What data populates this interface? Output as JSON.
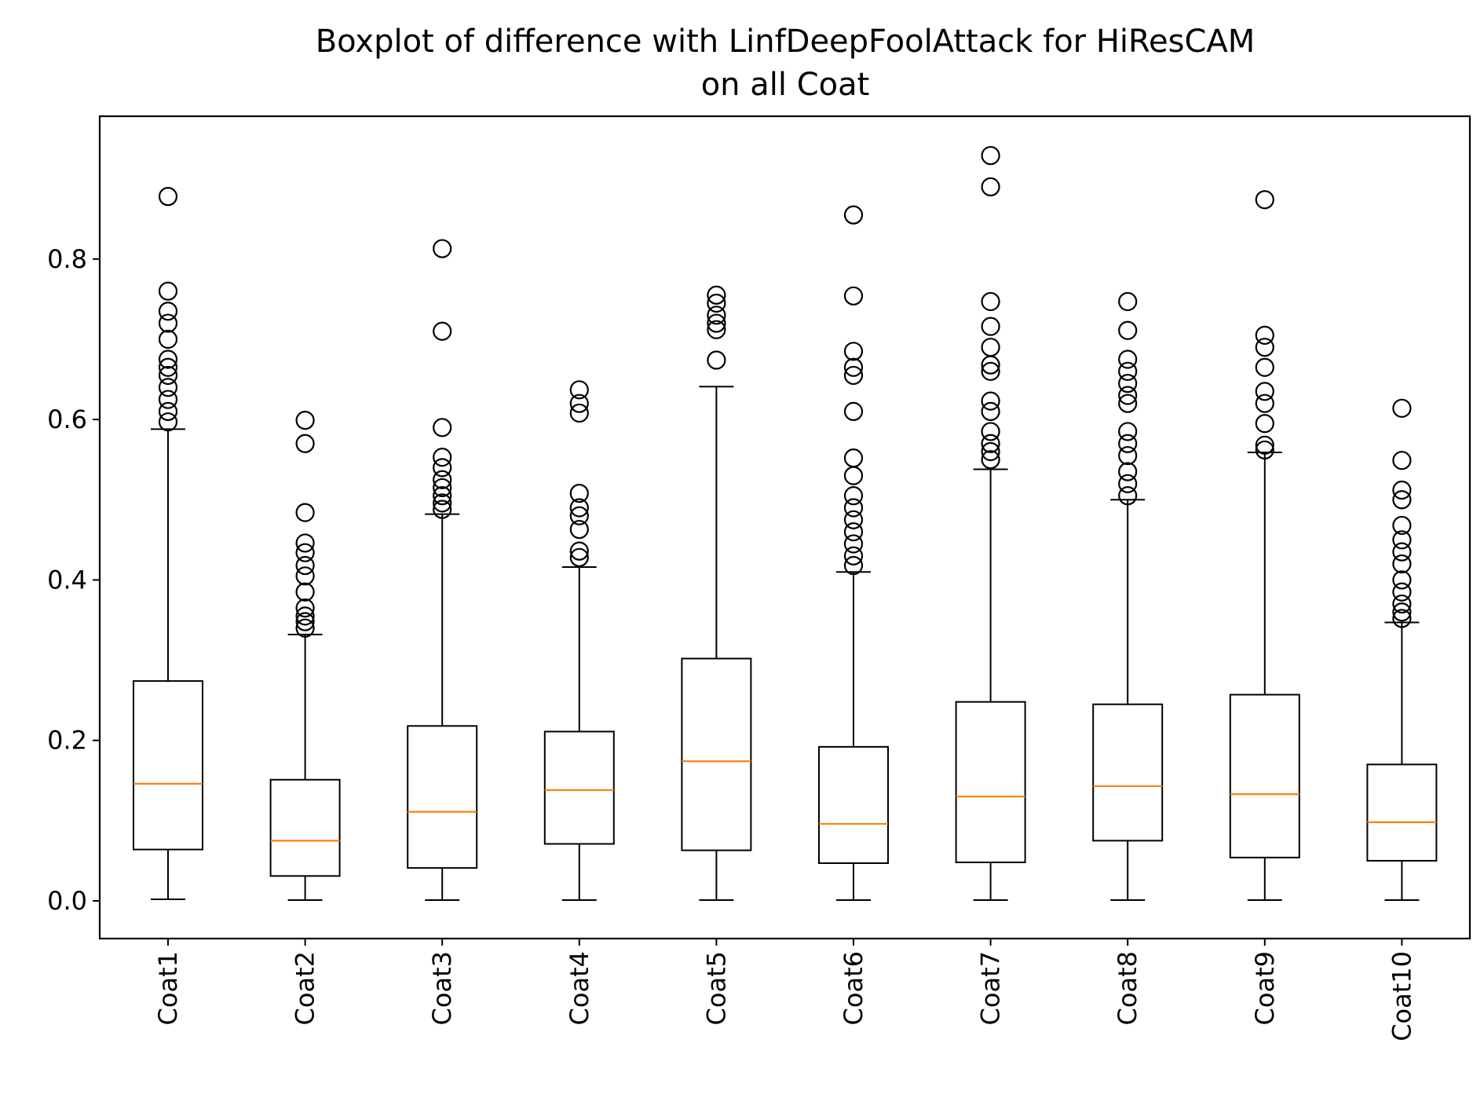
{
  "chart_data": {
    "type": "boxplot",
    "title_line1": "Boxplot of difference with LinfDeepFoolAttack for HiResCAM",
    "title_line2": "on all Coat",
    "xlabel": "",
    "ylabel": "",
    "ylim": [
      -0.047,
      0.978
    ],
    "yticks": [
      0.0,
      0.2,
      0.4,
      0.6,
      0.8
    ],
    "ytick_labels": [
      "0.0",
      "0.2",
      "0.4",
      "0.6",
      "0.8"
    ],
    "grid": false,
    "colors": {
      "box": "#000000",
      "median": "#ff7f0e",
      "flier": "#000000"
    },
    "categories": [
      "Coat1",
      "Coat2",
      "Coat3",
      "Coat4",
      "Coat5",
      "Coat6",
      "Coat7",
      "Coat8",
      "Coat9",
      "Coat10"
    ],
    "boxes": [
      {
        "label": "Coat1",
        "whisker_low": 0.002,
        "q1": 0.064,
        "median": 0.146,
        "q3": 0.274,
        "whisker_high": 0.588,
        "fliers": [
          0.878,
          0.76,
          0.735,
          0.72,
          0.7,
          0.675,
          0.665,
          0.655,
          0.64,
          0.625,
          0.61,
          0.597
        ]
      },
      {
        "label": "Coat2",
        "whisker_low": 0.001,
        "q1": 0.031,
        "median": 0.075,
        "q3": 0.151,
        "whisker_high": 0.332,
        "fliers": [
          0.599,
          0.57,
          0.484,
          0.446,
          0.434,
          0.418,
          0.405,
          0.385,
          0.365,
          0.355,
          0.348,
          0.34
        ]
      },
      {
        "label": "Coat3",
        "whisker_low": 0.001,
        "q1": 0.041,
        "median": 0.111,
        "q3": 0.218,
        "whisker_high": 0.482,
        "fliers": [
          0.813,
          0.71,
          0.59,
          0.553,
          0.54,
          0.525,
          0.515,
          0.505,
          0.496,
          0.488
        ]
      },
      {
        "label": "Coat4",
        "whisker_low": 0.001,
        "q1": 0.071,
        "median": 0.138,
        "q3": 0.211,
        "whisker_high": 0.416,
        "fliers": [
          0.637,
          0.62,
          0.608,
          0.508,
          0.49,
          0.48,
          0.463,
          0.436,
          0.428
        ]
      },
      {
        "label": "Coat5",
        "whisker_low": 0.001,
        "q1": 0.063,
        "median": 0.174,
        "q3": 0.302,
        "whisker_high": 0.641,
        "fliers": [
          0.755,
          0.745,
          0.73,
          0.72,
          0.712,
          0.674
        ]
      },
      {
        "label": "Coat6",
        "whisker_low": 0.001,
        "q1": 0.047,
        "median": 0.096,
        "q3": 0.192,
        "whisker_high": 0.41,
        "fliers": [
          0.855,
          0.754,
          0.685,
          0.665,
          0.655,
          0.61,
          0.552,
          0.53,
          0.505,
          0.49,
          0.475,
          0.46,
          0.445,
          0.43,
          0.418
        ]
      },
      {
        "label": "Coat7",
        "whisker_low": 0.001,
        "q1": 0.048,
        "median": 0.13,
        "q3": 0.248,
        "whisker_high": 0.538,
        "fliers": [
          0.929,
          0.89,
          0.747,
          0.716,
          0.69,
          0.668,
          0.66,
          0.623,
          0.61,
          0.585,
          0.57,
          0.56,
          0.55
        ]
      },
      {
        "label": "Coat8",
        "whisker_low": 0.001,
        "q1": 0.075,
        "median": 0.143,
        "q3": 0.245,
        "whisker_high": 0.5,
        "fliers": [
          0.747,
          0.711,
          0.675,
          0.66,
          0.645,
          0.63,
          0.62,
          0.585,
          0.57,
          0.555,
          0.535,
          0.52,
          0.505
        ]
      },
      {
        "label": "Coat9",
        "whisker_low": 0.001,
        "q1": 0.054,
        "median": 0.133,
        "q3": 0.257,
        "whisker_high": 0.559,
        "fliers": [
          0.874,
          0.705,
          0.69,
          0.665,
          0.635,
          0.62,
          0.595,
          0.568,
          0.562
        ]
      },
      {
        "label": "Coat10",
        "whisker_low": 0.001,
        "q1": 0.05,
        "median": 0.098,
        "q3": 0.17,
        "whisker_high": 0.347,
        "fliers": [
          0.614,
          0.549,
          0.512,
          0.5,
          0.468,
          0.45,
          0.435,
          0.42,
          0.4,
          0.385,
          0.37,
          0.36,
          0.352
        ]
      }
    ]
  }
}
